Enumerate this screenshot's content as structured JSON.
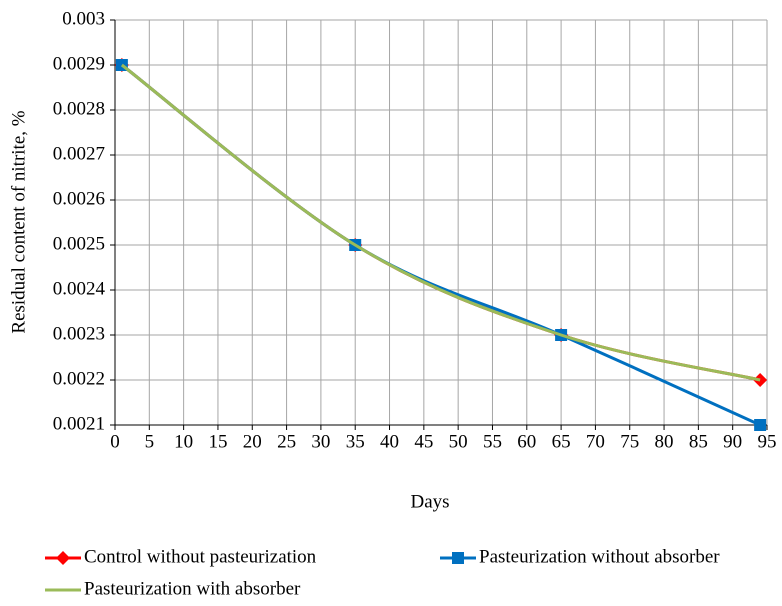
{
  "chart_data": {
    "type": "line",
    "x_label": "Days",
    "y_label": "Residual content of nitrite, %",
    "x": [
      1,
      35,
      65,
      94
    ],
    "series": [
      {
        "name": "Control without pasteurization",
        "color": "#ff0000",
        "marker": "diamond",
        "values": [
          0.0029,
          0.0025,
          0.0023,
          0.0022
        ]
      },
      {
        "name": "Pasteurization without absorber",
        "color": "#0070c0",
        "marker": "square",
        "values": [
          0.0029,
          0.0025,
          0.0023,
          0.0021
        ]
      },
      {
        "name": "Pasteurization with absorber",
        "color": "#9bbb59",
        "marker": "none",
        "values": [
          0.0029,
          0.0025,
          0.0023,
          0.0022
        ]
      }
    ],
    "xlim": [
      0,
      95
    ],
    "xticks": [
      0,
      5,
      10,
      15,
      20,
      25,
      30,
      35,
      40,
      45,
      50,
      55,
      60,
      65,
      70,
      75,
      80,
      85,
      90,
      95
    ],
    "ylim": [
      0.0021,
      0.003
    ],
    "yticks": [
      0.0021,
      0.0022,
      0.0023,
      0.0024,
      0.0025,
      0.0026,
      0.0027,
      0.0028,
      0.0029,
      0.003
    ],
    "grid": true,
    "smooth": true,
    "legend": "bottom"
  }
}
